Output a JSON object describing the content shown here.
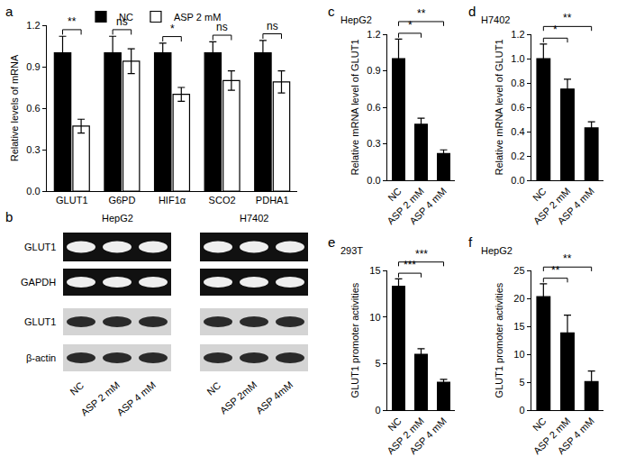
{
  "chart_data": [
    {
      "panel": "a",
      "type": "bar",
      "y_label": "Relative levels of mRNA",
      "categories": [
        "GLUT1",
        "G6PD",
        "HIF1α",
        "SCO2",
        "PDHA1"
      ],
      "series": [
        {
          "name": "NC",
          "color": "#000000",
          "values": [
            1.0,
            1.0,
            1.0,
            1.0,
            1.0
          ],
          "errors": [
            0.12,
            0.12,
            0.07,
            0.08,
            0.09
          ]
        },
        {
          "name": "ASP 2 mM",
          "color": "#ffffff",
          "values": [
            0.47,
            0.94,
            0.7,
            0.8,
            0.79
          ],
          "errors": [
            0.05,
            0.09,
            0.05,
            0.07,
            0.08
          ]
        }
      ],
      "significance": [
        {
          "category": "GLUT1",
          "label": "**"
        },
        {
          "category": "G6PD",
          "label": "ns"
        },
        {
          "category": "HIF1α",
          "label": "*"
        },
        {
          "category": "SCO2",
          "label": "ns"
        },
        {
          "category": "PDHA1",
          "label": "ns"
        }
      ],
      "ylim": [
        0,
        1.2
      ],
      "yticks": [
        {
          "value": 0,
          "label": "0.0"
        },
        0.3,
        0.6,
        0.9,
        1.2
      ],
      "grid": false,
      "legend": "top"
    },
    {
      "panel": "c",
      "type": "bar",
      "title": "HepG2",
      "y_label": "Relative mRNA level of GLUT1",
      "categories": [
        "NC",
        "ASP 2 mM",
        "ASP 4 mM"
      ],
      "values": [
        1.0,
        0.46,
        0.22
      ],
      "errors": [
        0.16,
        0.05,
        0.03
      ],
      "color": "#000000",
      "comparisons": [
        {
          "from": "NC",
          "to": "ASP 2 mM",
          "label": "*"
        },
        {
          "from": "NC",
          "to": "ASP 4 mM",
          "label": "**"
        }
      ],
      "ylim": [
        0,
        1.2
      ],
      "yticks": [
        {
          "value": 0,
          "label": "0.0"
        },
        0.3,
        0.6,
        0.9,
        1.2
      ],
      "grid": false
    },
    {
      "panel": "d",
      "type": "bar",
      "title": "H7402",
      "y_label": "Relative mRNA level of GLUT1",
      "categories": [
        "NC",
        "ASP 2 mM",
        "ASP 4 mM"
      ],
      "values": [
        1.0,
        0.75,
        0.43
      ],
      "errors": [
        0.12,
        0.08,
        0.05
      ],
      "color": "#000000",
      "comparisons": [
        {
          "from": "NC",
          "to": "ASP 2 mM",
          "label": "*"
        },
        {
          "from": "NC",
          "to": "ASP 4 mM",
          "label": "**"
        }
      ],
      "ylim": [
        0,
        1.2
      ],
      "yticks": [
        {
          "value": 0,
          "label": "0.0"
        },
        0.2,
        0.4,
        0.6,
        0.8,
        {
          "value": 1,
          "label": "1.0"
        },
        1.2
      ],
      "grid": false
    },
    {
      "panel": "e",
      "type": "bar",
      "title": "293T",
      "y_label": "GLUT1 promoter activities",
      "categories": [
        "NC",
        "ASP 2 mM",
        "ASP 4 mM"
      ],
      "values": [
        13.3,
        6.0,
        3.0
      ],
      "errors": [
        0.8,
        0.6,
        0.3
      ],
      "color": "#000000",
      "comparisons": [
        {
          "from": "NC",
          "to": "ASP 2 mM",
          "label": "***"
        },
        {
          "from": "NC",
          "to": "ASP 4 mM",
          "label": "***"
        }
      ],
      "ylim": [
        0,
        15
      ],
      "yticks": [
        0,
        5,
        10,
        15
      ],
      "grid": false
    },
    {
      "panel": "f",
      "type": "bar",
      "title": "HepG2",
      "y_label": "GLUT1 promoter activities",
      "categories": [
        "NC",
        "ASP 2 mM",
        "ASP 4 mM"
      ],
      "values": [
        20.3,
        13.8,
        5.1
      ],
      "errors": [
        2.3,
        3.2,
        1.9
      ],
      "color": "#000000",
      "comparisons": [
        {
          "from": "NC",
          "to": "ASP 2 mM",
          "label": "**"
        },
        {
          "from": "NC",
          "to": "ASP 4 mM",
          "label": "**"
        }
      ],
      "ylim": [
        0,
        25
      ],
      "yticks": [
        0,
        5,
        10,
        15,
        20,
        25
      ],
      "grid": false
    }
  ],
  "blot": {
    "panel": "b",
    "rows": [
      "GLUT1",
      "GAPDH",
      "GLUT1",
      "β-actin"
    ],
    "groups": [
      {
        "name": "HepG2",
        "lanes": [
          "NC",
          "ASP 2 mM",
          "ASP 4 mM"
        ]
      },
      {
        "name": "H7402",
        "lanes": [
          "NC",
          "ASP 2mM",
          "ASP 4mM"
        ]
      }
    ]
  }
}
